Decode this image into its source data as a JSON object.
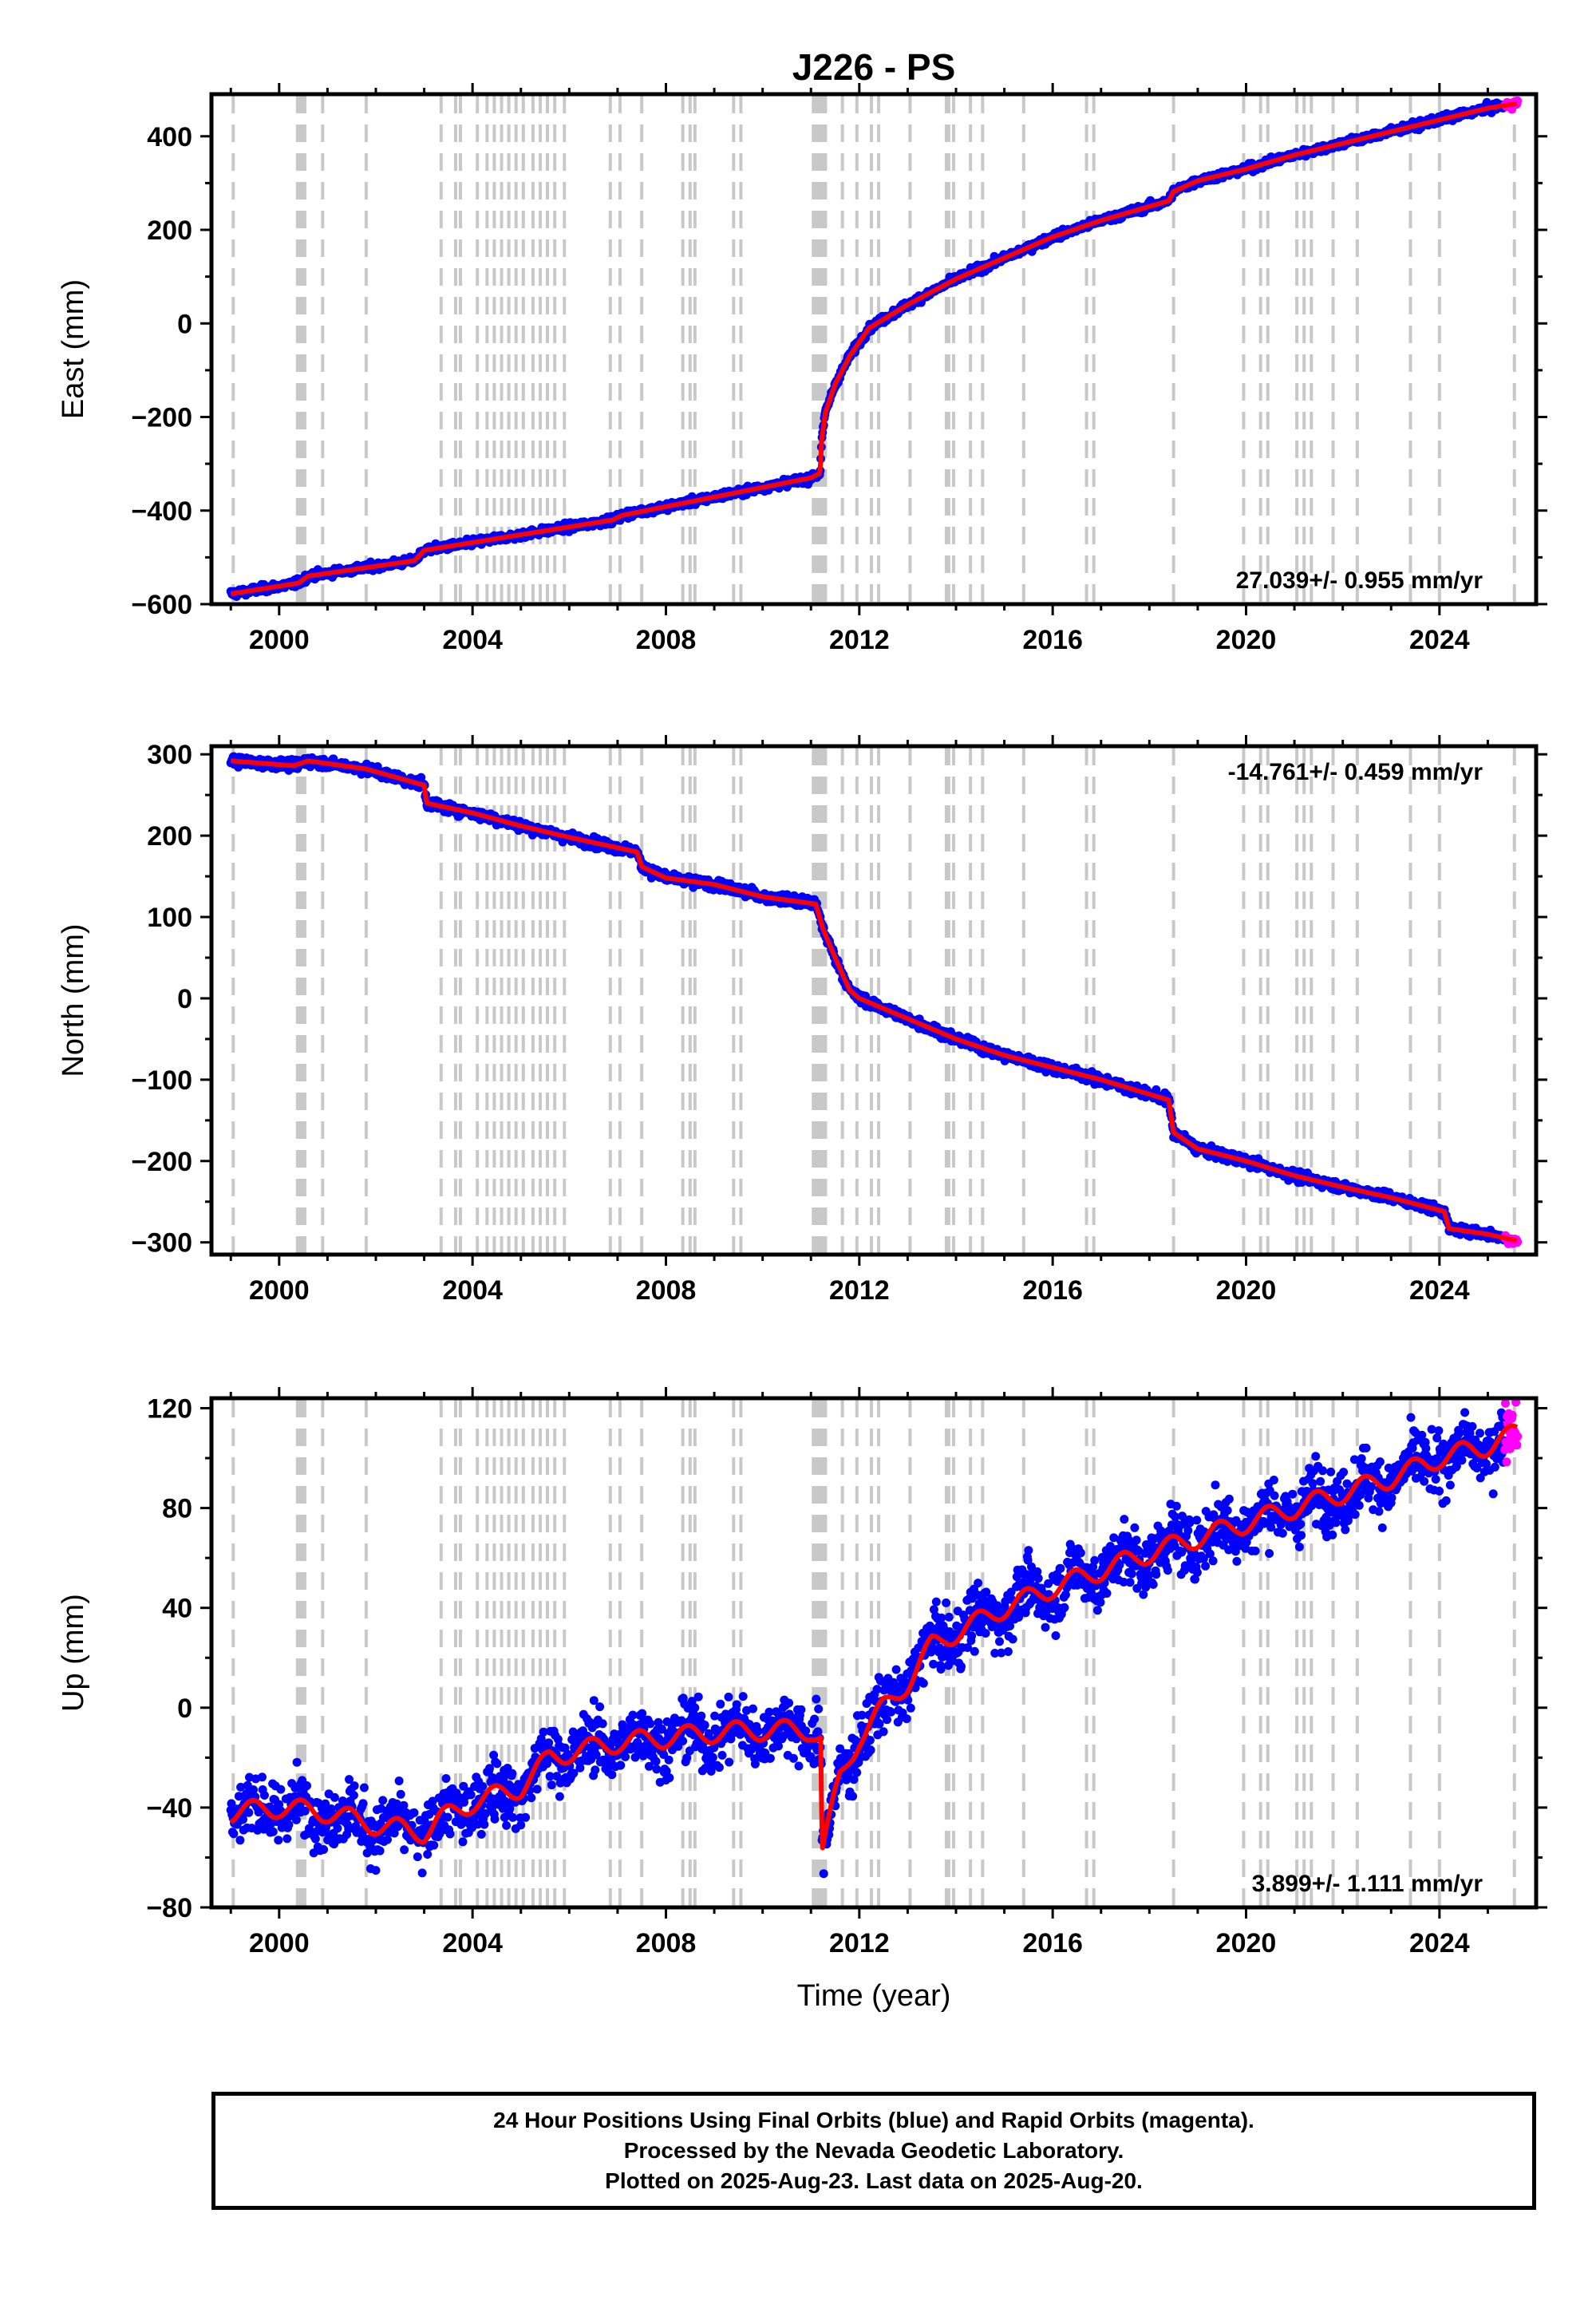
{
  "colors": {
    "final": "#0000ff",
    "rapid": "#ff00ff",
    "fit": "#ff0000",
    "event": "#c8c8c8",
    "axis": "#000000"
  },
  "figure_title": "J226 - PS",
  "xlabel": "Time (year)",
  "caption": [
    "24 Hour Positions Using Final Orbits (blue) and Rapid Orbits (magenta).",
    "Processed by the Nevada Geodetic Laboratory.",
    "Plotted on 2025-Aug-23. Last data on 2025-Aug-20."
  ],
  "chart_data": [
    {
      "type": "scatter",
      "panel": "east",
      "ylabel": "East (mm)",
      "rate_text": "27.039+/- 0.955 mm/yr",
      "rate_position": "bottom-right",
      "xlim": [
        1998.6,
        2026.0
      ],
      "ylim": [
        -600,
        490
      ],
      "xticks": [
        2000,
        2004,
        2008,
        2012,
        2016,
        2020,
        2024
      ],
      "yticks": [
        -600,
        -400,
        -200,
        0,
        200,
        400
      ],
      "yticklabels": [
        "−600",
        "−400",
        "−200",
        "0",
        "200",
        "400"
      ],
      "ytick_minor": [
        -500,
        -300,
        -100,
        100,
        300
      ],
      "scatter_sd": 4,
      "rapid_from": 2025.35,
      "model": {
        "x": [
          1999.0,
          2000.4,
          2000.6,
          2002.8,
          2003.0,
          2006.9,
          2007.1,
          2011.0,
          2011.19,
          2011.22,
          2011.3,
          2011.5,
          2011.8,
          2012.2,
          2013.0,
          2014.0,
          2015.0,
          2016.0,
          2017.0,
          2018.4,
          2018.5,
          2019.0,
          2020.0,
          2021.0,
          2022.0,
          2023.0,
          2024.0,
          2025.0,
          2025.6
        ],
        "y": [
          -578,
          -555,
          -540,
          -507,
          -485,
          -420,
          -410,
          -330,
          -320,
          -250,
          -190,
          -130,
          -70,
          -10,
          40,
          95,
          140,
          185,
          220,
          262,
          282,
          305,
          330,
          360,
          385,
          410,
          435,
          460,
          470
        ]
      }
    },
    {
      "type": "scatter",
      "panel": "north",
      "ylabel": "North (mm)",
      "rate_text": "-14.761+/- 0.459 mm/yr",
      "rate_position": "top-right",
      "xlim": [
        1998.6,
        2026.0
      ],
      "ylim": [
        -315,
        310
      ],
      "xticks": [
        2000,
        2004,
        2008,
        2012,
        2016,
        2020,
        2024
      ],
      "yticks": [
        -300,
        -200,
        -100,
        0,
        100,
        200,
        300
      ],
      "yticklabels": [
        "−300",
        "−200",
        "−100",
        "0",
        "100",
        "200",
        "300"
      ],
      "ytick_minor": [
        -250,
        -150,
        -50,
        50,
        150,
        250
      ],
      "scatter_sd": 3,
      "rapid_from": 2025.35,
      "model": {
        "x": [
          1999.0,
          2000.3,
          2000.6,
          2001.8,
          2003.0,
          2003.05,
          2004.0,
          2005.0,
          2006.0,
          2007.4,
          2007.5,
          2008.0,
          2009.0,
          2010.0,
          2011.1,
          2011.25,
          2011.5,
          2011.8,
          2012.0,
          2013.0,
          2014.0,
          2015.0,
          2016.0,
          2017.0,
          2018.4,
          2018.5,
          2019.0,
          2020.0,
          2021.0,
          2022.0,
          2023.0,
          2024.1,
          2024.2,
          2025.0,
          2025.6
        ],
        "y": [
          292,
          286,
          292,
          282,
          262,
          240,
          228,
          212,
          198,
          180,
          162,
          148,
          140,
          125,
          116,
          85,
          50,
          10,
          0,
          -25,
          -50,
          -70,
          -85,
          -100,
          -125,
          -165,
          -185,
          -200,
          -218,
          -232,
          -245,
          -262,
          -283,
          -290,
          -298
        ]
      }
    },
    {
      "type": "scatter",
      "panel": "up",
      "ylabel": "Up (mm)",
      "rate_text": "3.899+/- 1.111 mm/yr",
      "rate_position": "bottom-right",
      "xlim": [
        1998.6,
        2026.0
      ],
      "ylim": [
        -80,
        124
      ],
      "xticks": [
        2000,
        2004,
        2008,
        2012,
        2016,
        2020,
        2024
      ],
      "yticks": [
        -80,
        -40,
        0,
        40,
        80,
        120
      ],
      "yticklabels": [
        "−80",
        "−40",
        "0",
        "40",
        "80",
        "120"
      ],
      "ytick_minor": [
        -60,
        -20,
        20,
        60,
        100
      ],
      "scatter_sd": 6,
      "seasonal_amp": 4,
      "rapid_from": 2025.35,
      "model": {
        "x": [
          1999.0,
          2000.0,
          2001.0,
          2002.0,
          2003.0,
          2003.3,
          2004.0,
          2005.0,
          2005.6,
          2006.0,
          2007.0,
          2008.0,
          2009.0,
          2010.0,
          2011.0,
          2011.2,
          2011.23,
          2011.6,
          2012.0,
          2012.5,
          2013.0,
          2013.5,
          2014.0,
          2015.0,
          2016.0,
          2017.0,
          2018.0,
          2019.0,
          2020.0,
          2021.0,
          2022.0,
          2023.0,
          2024.0,
          2025.0,
          2025.6
        ],
        "y": [
          -42,
          -40,
          -42,
          -47,
          -50,
          -45,
          -38,
          -32,
          -20,
          -18,
          -14,
          -12,
          -10,
          -9,
          -9,
          -12,
          -58,
          -28,
          -12,
          0,
          10,
          25,
          30,
          40,
          48,
          55,
          62,
          68,
          74,
          80,
          86,
          92,
          100,
          105,
          110
        ]
      }
    }
  ],
  "events": [
    1999.05,
    2000.38,
    2000.42,
    2000.45,
    2000.5,
    2000.53,
    2000.9,
    2001.8,
    2003.35,
    2003.65,
    2003.75,
    2004.1,
    2004.3,
    2004.45,
    2004.6,
    2004.75,
    2004.9,
    2005.05,
    2005.25,
    2005.4,
    2005.55,
    2005.7,
    2005.9,
    2006.85,
    2007.05,
    2007.5,
    2008.35,
    2008.5,
    2008.6,
    2009.4,
    2009.55,
    2011.05,
    2011.1,
    2011.15,
    2011.2,
    2011.25,
    2011.3,
    2011.65,
    2011.95,
    2012.25,
    2012.4,
    2013.05,
    2013.8,
    2013.85,
    2013.95,
    2014.3,
    2014.55,
    2015.4,
    2016.7,
    2016.85,
    2018.5,
    2019.95,
    2020.3,
    2020.45,
    2021.05,
    2021.2,
    2021.35,
    2021.8,
    2022.3,
    2023.4,
    2024.0,
    2025.55
  ]
}
